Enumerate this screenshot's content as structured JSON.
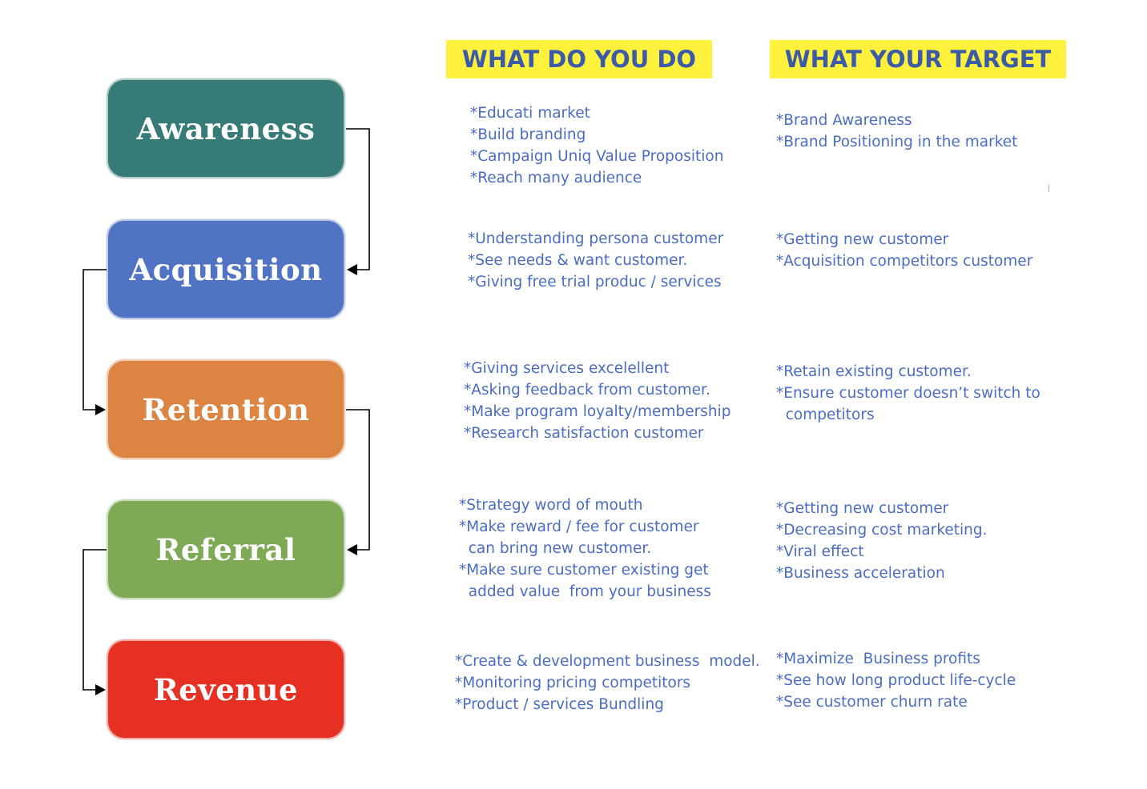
{
  "colors": {
    "header_bg": "#fff13c",
    "header_text": "#3b5aa8",
    "body_text": "#4a6cc2",
    "connector": "#000000"
  },
  "headers": {
    "do": "WHAT DO YOU DO",
    "target": "WHAT YOUR TARGET"
  },
  "stages": [
    {
      "name": "Awareness",
      "color": "#367b78",
      "do": [
        "*Educati market",
        "*Build branding",
        "*Campaign Uniq Value Proposition",
        "*Reach many audience"
      ],
      "target": [
        "*Brand Awareness",
        "*Brand Positioning in the market"
      ]
    },
    {
      "name": "Acquisition",
      "color": "#5073c3",
      "do": [
        "*Understanding persona customer",
        "*See needs & want customer.",
        "*Giving free trial produc / services"
      ],
      "target": [
        "*Getting new customer",
        "*Acquisition competitors customer"
      ]
    },
    {
      "name": "Retention",
      "color": "#dc8442",
      "do": [
        "*Giving services excelellent",
        "*Asking feedback from customer.",
        "*Make program loyalty/membership",
        "*Research satisfaction customer"
      ],
      "target": [
        "*Retain existing customer.",
        "*Ensure customer doesn’t switch to",
        "  competitors"
      ]
    },
    {
      "name": "Referral",
      "color": "#7eaa55",
      "do": [
        "*Strategy word of mouth",
        "*Make reward / fee for customer",
        "  can bring new customer.",
        "*Make sure customer existing get",
        "  added value  from your business"
      ],
      "target": [
        "*Getting new customer",
        "*Decreasing cost marketing.",
        "*Viral effect",
        "*Business acceleration"
      ]
    },
    {
      "name": "Revenue",
      "color": "#e63024",
      "do": [
        "*Create & development business  model.",
        "*Monitoring pricing competitors",
        "*Product / services Bundling"
      ],
      "target": [
        "*Maximize  Business profits",
        "*See how long product life-cycle",
        "*See customer churn rate"
      ]
    }
  ]
}
